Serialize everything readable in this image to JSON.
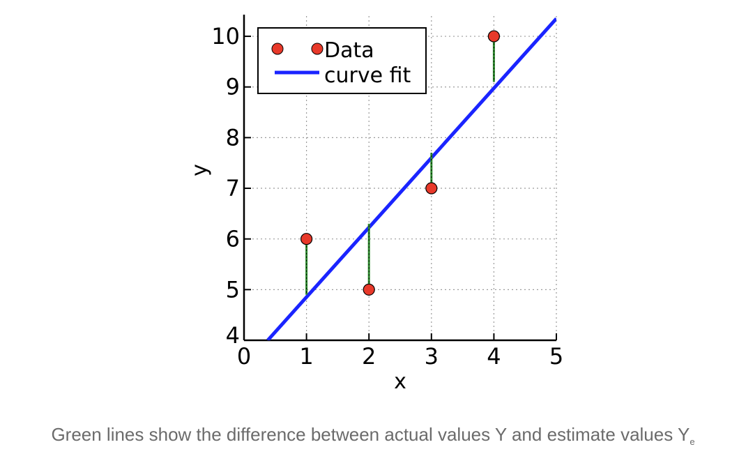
{
  "caption": {
    "text": "Green lines show the difference between actual values Y and estimate values Y",
    "subscript": "e"
  },
  "chart_data": {
    "type": "scatter",
    "xlabel": "x",
    "ylabel": "y",
    "xlim": [
      0,
      5
    ],
    "ylim": [
      4,
      10.4
    ],
    "x_ticks": [
      "0",
      "1",
      "2",
      "3",
      "4",
      "5"
    ],
    "y_ticks": [
      "4",
      "5",
      "6",
      "7",
      "8",
      "9",
      "10"
    ],
    "grid": true,
    "legend_position": "top-left",
    "series": [
      {
        "name": "Data",
        "type": "scatter",
        "color": "#e8392a",
        "x": [
          1,
          2,
          3,
          4
        ],
        "y": [
          6,
          5,
          7,
          10
        ]
      },
      {
        "name": "curve fit",
        "type": "line",
        "color": "#1a24ff",
        "x": [
          0.38,
          5.0
        ],
        "y": [
          4.0,
          10.35
        ]
      }
    ],
    "residual_color": "#2e8b2e",
    "fit_values_at_points": [
      4.9,
      6.3,
      7.7,
      9.1
    ]
  }
}
